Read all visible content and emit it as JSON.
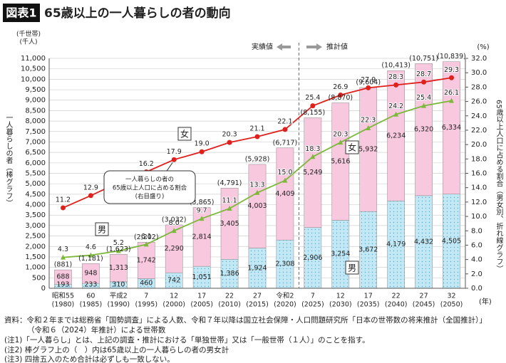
{
  "chart_data": {
    "type": "bar-line",
    "title_tag": "図表1",
    "title": "65歳以上の一人暮らしの者の動向",
    "y_unit_1": "(千世帯)",
    "y_unit_2": "(千人)",
    "y_label": "一人暮らしの者（棒グラフ）",
    "y2_unit": "(%)",
    "y2_label": "65歳以上人口に占める割合（男女別、折れ線グラフ）",
    "x_unit": "(年)",
    "actual_label": "実績値",
    "projected_label": "推計値",
    "callout": [
      "一人暮らしの者の",
      "65歳以上人口に占める割合",
      "(右目盛り)"
    ],
    "categories": [
      "昭和55",
      "60",
      "平成2",
      "7",
      "12",
      "17",
      "22",
      "27",
      "令和2",
      "7",
      "12",
      "17",
      "22",
      "27",
      "32"
    ],
    "category_years": [
      "(1980)",
      "(1985)",
      "(1990)",
      "(1995)",
      "(2000)",
      "(2005)",
      "(2010)",
      "(2015)",
      "(2020)",
      "(2025)",
      "(2030)",
      "(2035)",
      "(2040)",
      "(2045)",
      "(2050)"
    ],
    "series": [
      {
        "name": "男",
        "type": "bar",
        "color": "#c3e8f5",
        "values": [
          193,
          233,
          310,
          460,
          742,
          1051,
          1386,
          1924,
          2308,
          2906,
          3254,
          3672,
          4179,
          4432,
          4505
        ],
        "value_labels": [
          "193",
          "233",
          "310",
          "460",
          "742",
          "1,051",
          "1,386",
          "1,924",
          "2,308",
          "2,906",
          "3,254",
          "3,672",
          "4,179",
          "4,432",
          "4,505"
        ]
      },
      {
        "name": "女",
        "type": "bar",
        "color": "#f8c8de",
        "values": [
          688,
          948,
          1313,
          1742,
          2290,
          2814,
          3405,
          4003,
          4409,
          5249,
          5616,
          5932,
          6234,
          6320,
          6334
        ],
        "value_labels": [
          "688",
          "948",
          "1,313",
          "1,742",
          "2,290",
          "2,814",
          "3,405",
          "4,003",
          "4,409",
          "5,249",
          "5,616",
          "5,932",
          "6,234",
          "6,320",
          "6,334"
        ]
      },
      {
        "name": "女",
        "type": "line",
        "axis": "y2",
        "color": "#e0201c",
        "values": [
          11.2,
          12.9,
          14.7,
          16.2,
          17.9,
          19.0,
          20.3,
          21.1,
          22.1,
          25.4,
          26.9,
          27.9,
          28.3,
          28.7,
          29.3
        ],
        "value_labels": [
          "11.2",
          "12.9",
          "14.7",
          "16.2",
          "17.9",
          "19.0",
          "20.3",
          "21.1",
          "22.1",
          "25.4",
          "26.9",
          "27.9",
          "28.3",
          "28.7",
          "29.3"
        ]
      },
      {
        "name": "男",
        "type": "line",
        "axis": "y2",
        "color": "#7cb83a",
        "values": [
          4.3,
          4.6,
          5.2,
          6.1,
          8.0,
          9.7,
          11.1,
          13.3,
          15.0,
          18.3,
          20.3,
          22.3,
          24.2,
          25.4,
          26.1
        ],
        "value_labels": [
          "4.3",
          "4.6",
          "5.2",
          "6.1",
          "8.0",
          "9.7",
          "11.1",
          "13.3",
          "15.0",
          "18.3",
          "20.3",
          "22.3",
          "24.2",
          "25.4",
          "26.1"
        ]
      }
    ],
    "totals": {
      "values": [
        881,
        1181,
        1623,
        2202,
        3032,
        3865,
        4791,
        5928,
        6717,
        8155,
        8870,
        9604,
        10413,
        10751,
        10839
      ],
      "value_labels": [
        "(881)",
        "(1,181)",
        "(1,623)",
        "(2,202)",
        "(3,032)",
        "(3,865)",
        "(4,791)",
        "(5,928)",
        "(6,717)",
        "(8,155)",
        "(8,870)",
        "(9,604)",
        "(10,413)",
        "(10,751)",
        "(10,839)"
      ]
    },
    "ylim": [
      0,
      11000
    ],
    "yticks": [
      0,
      500,
      {
        "value": 1000,
        "label": "1,000"
      },
      {
        "value": 1500,
        "label": "1,500"
      },
      {
        "value": 2000,
        "label": "2,000"
      },
      {
        "value": 2500,
        "label": "2,500"
      },
      {
        "value": 3000,
        "label": "3,000"
      },
      {
        "value": 3500,
        "label": "3,500"
      },
      {
        "value": 4000,
        "label": "4,000"
      },
      {
        "value": 4500,
        "label": "4,500"
      },
      {
        "value": 5000,
        "label": "5,000"
      },
      {
        "value": 5500,
        "label": "5,500"
      },
      {
        "value": 6000,
        "label": "6,000"
      },
      {
        "value": 6500,
        "label": "6,500"
      },
      {
        "value": 7000,
        "label": "7,000"
      },
      {
        "value": 7500,
        "label": "7,500"
      },
      {
        "value": 8000,
        "label": "8,000"
      },
      {
        "value": 8500,
        "label": "8,500"
      },
      {
        "value": 9000,
        "label": "9,000"
      },
      {
        "value": 9500,
        "label": "9,500"
      },
      {
        "value": 10000,
        "label": "10,000"
      },
      {
        "value": 10500,
        "label": "10,500"
      },
      {
        "value": 11000,
        "label": "11,000"
      }
    ],
    "y2lim": [
      0,
      32
    ],
    "y2ticks": [
      {
        "value": 0,
        "label": "0.0"
      },
      {
        "value": 2,
        "label": "2.0"
      },
      {
        "value": 4,
        "label": "4.0"
      },
      {
        "value": 6,
        "label": "6.0"
      },
      {
        "value": 8,
        "label": "8.0"
      },
      {
        "value": 10,
        "label": "10.0"
      },
      {
        "value": 12,
        "label": "12.0"
      },
      {
        "value": 14,
        "label": "14.0"
      },
      {
        "value": 16,
        "label": "16.0"
      },
      {
        "value": 18,
        "label": "18.0"
      },
      {
        "value": 20,
        "label": "20.0"
      },
      {
        "value": 22,
        "label": "22.0"
      },
      {
        "value": 24,
        "label": "24.0"
      },
      {
        "value": 26,
        "label": "26.0"
      },
      {
        "value": 28,
        "label": "28.0"
      },
      {
        "value": 30,
        "label": "30.0"
      },
      {
        "value": 32,
        "label": "32.0"
      }
    ],
    "grid": true,
    "notes": [
      "資料：令和２年までは総務省「国勢調査」による人数、令和７年以降は国立社会保障・人口問題研究所「日本の世帯数の将来推計（全国推計）」",
      "（令和６（2024）年推計）による世帯数",
      "(注1)「一人暮らし」とは、上記の調査・推計における「単独世帯」又は「一般世帯（１人）」のことを指す。",
      "(注2) 棒グラフ上の（　）内は65歳以上の一人暮らしの者の男女計",
      "(注3) 四捨五入のため合計は必ずしも一致しない。"
    ]
  }
}
